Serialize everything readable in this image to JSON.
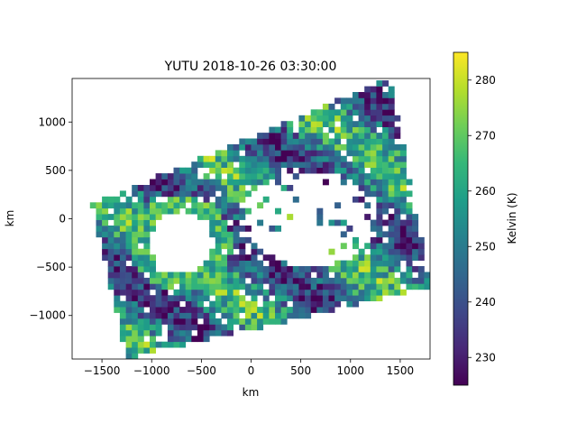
{
  "chart_data": {
    "type": "heatmap",
    "title": "YUTU 2018-10-26 03:30:00",
    "xlabel": "km",
    "ylabel": "km",
    "xlim": [
      -1800,
      1800
    ],
    "ylim": [
      -1450,
      1450
    ],
    "xticks": [
      -1500,
      -1000,
      -500,
      0,
      500,
      1000,
      1500
    ],
    "yticks": [
      -1000,
      -500,
      0,
      500,
      1000
    ],
    "xtick_labels": [
      "−1500",
      "−1000",
      "−500",
      "0",
      "500",
      "1000",
      "1500"
    ],
    "ytick_labels": [
      "−1000",
      "−500",
      "0",
      "500",
      "1000"
    ],
    "colorbar": {
      "label": "Kelvin (K)",
      "colormap": "viridis",
      "range": [
        225,
        285
      ],
      "ticks": [
        230,
        240,
        250,
        260,
        270,
        280
      ],
      "tick_labels": [
        "230",
        "240",
        "250",
        "260",
        "270",
        "280"
      ]
    },
    "swath_corners_km": [
      [
        -1600,
        150
      ],
      [
        -1250,
        -1450
      ],
      [
        1800,
        -700
      ],
      [
        1400,
        1450
      ]
    ],
    "features": [
      {
        "name": "eye",
        "center": [
          -700,
          -250
        ],
        "radius": 320
      },
      {
        "name": "clear-region",
        "center": [
          600,
          0
        ],
        "radius": 550
      }
    ],
    "grid": false
  },
  "colors": {
    "viridis": [
      "#440154",
      "#482878",
      "#3e4989",
      "#31688e",
      "#26828e",
      "#1f9e89",
      "#35b779",
      "#6ece58",
      "#b5de2b",
      "#fde725"
    ]
  }
}
